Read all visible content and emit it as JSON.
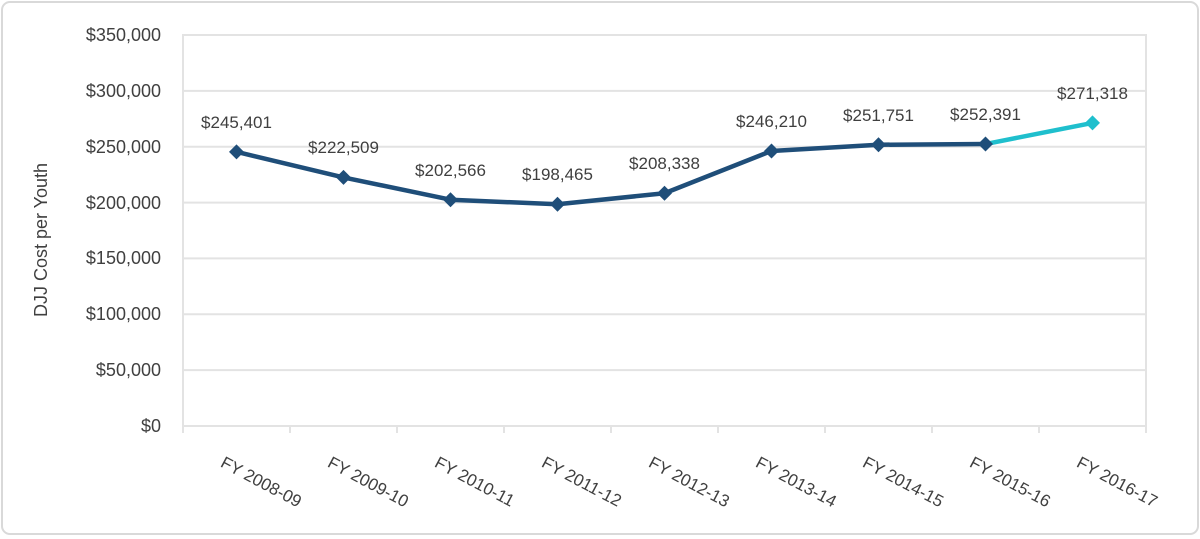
{
  "chart_data": {
    "type": "line",
    "title": "",
    "xlabel": "",
    "ylabel": "DJJ Cost per Youth",
    "categories": [
      "FY 2008-09",
      "FY 2009-10",
      "FY 2010-11",
      "FY 2011-12",
      "FY 2012-13",
      "FY 2013-14",
      "FY 2014-15",
      "FY 2015-16",
      "FY 2016-17"
    ],
    "series": [
      {
        "name": "DJJ Cost per Youth",
        "values": [
          245401,
          222509,
          202566,
          198465,
          208338,
          246210,
          251751,
          252391,
          271318
        ]
      }
    ],
    "data_labels": [
      "$245,401",
      "$222,509",
      "$202,566",
      "$198,465",
      "$208,338",
      "$246,210",
      "$251,751",
      "$252,391",
      "$271,318"
    ],
    "ylim": [
      0,
      350000
    ],
    "ytick_step": 50000,
    "ytick_labels": [
      "$0",
      "$50,000",
      "$100,000",
      "$150,000",
      "$200,000",
      "$250,000",
      "$300,000",
      "$350,000"
    ],
    "grid": true,
    "legend": "none",
    "marker": "diamond",
    "highlight_last_segment": true,
    "colors": {
      "line": "#1F4E79",
      "highlight": "#1FBFCD",
      "gridline": "#E3E3E3",
      "axis_text": "#404040",
      "frame_border": "#D9D9D9"
    }
  }
}
